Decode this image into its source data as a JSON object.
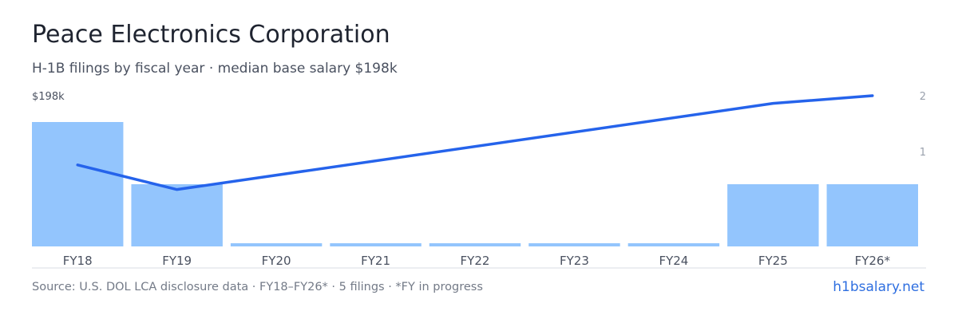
{
  "header": {
    "title": "Peace Electronics Corporation",
    "subtitle": "H-1B filings by fiscal year · median base salary $198k"
  },
  "footer": {
    "source": "Source: U.S. DOL LCA disclosure data · FY18–FY26* · 5 filings · *FY in progress",
    "link": "h1bsalary.net"
  },
  "colors": {
    "bar": "#93c5fd",
    "line": "#2563eb",
    "axis_text": "#4a5160",
    "right_tick_text": "#9aa1ad",
    "baseline": "#d9dde3"
  },
  "chart_data": {
    "type": "bar",
    "categories": [
      "FY18",
      "FY19",
      "FY20",
      "FY21",
      "FY22",
      "FY23",
      "FY24",
      "FY25",
      "FY26*"
    ],
    "series": [
      {
        "type": "bar",
        "axis": "right",
        "values": [
          2,
          1,
          0,
          0,
          0,
          0,
          0,
          1,
          1
        ]
      },
      {
        "type": "line",
        "axis": "left",
        "values": [
          153,
          137,
          null,
          null,
          null,
          null,
          null,
          193,
          198
        ]
      }
    ],
    "left_axis_label": "$198k",
    "right_ticks": [
      "2",
      "1"
    ],
    "right_ylim": [
      0,
      2
    ],
    "grid": false,
    "legend": "none"
  }
}
